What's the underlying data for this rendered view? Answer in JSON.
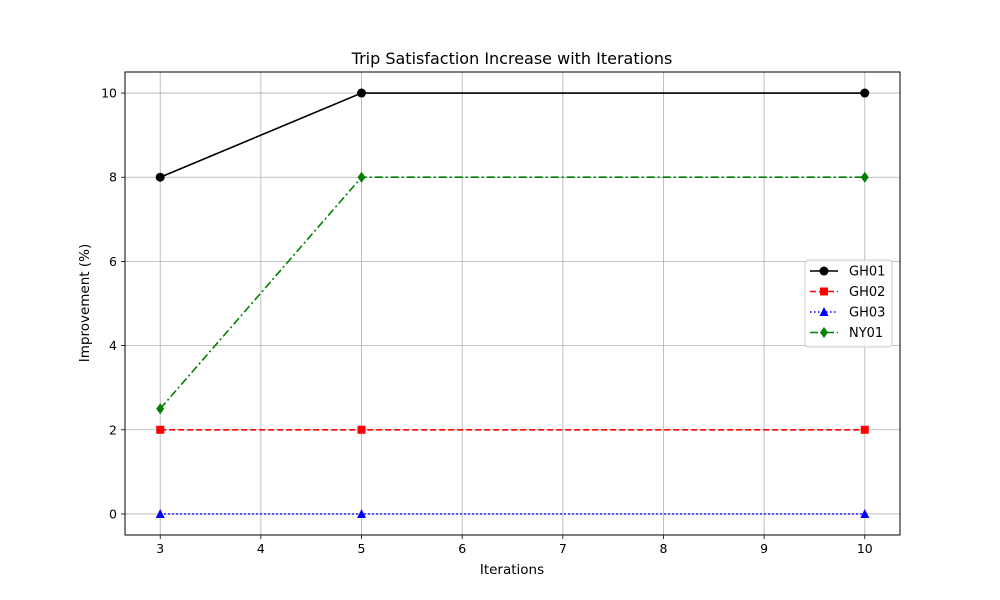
{
  "chart_data": {
    "type": "line",
    "title": "Trip Satisfaction Increase with Iterations",
    "xlabel": "Iterations",
    "ylabel": "Improvement (%)",
    "xlim": [
      2.65,
      10.35
    ],
    "ylim": [
      -0.5,
      10.5
    ],
    "xticks": [
      3,
      4,
      5,
      6,
      7,
      8,
      9,
      10
    ],
    "yticks": [
      0,
      2,
      4,
      6,
      8,
      10
    ],
    "grid": true,
    "legend_position": "center-right",
    "series": [
      {
        "name": "GH01",
        "x": [
          3,
          5,
          10
        ],
        "y": [
          8,
          10,
          10
        ],
        "color": "#000000",
        "linestyle": "solid",
        "marker": "circle"
      },
      {
        "name": "GH02",
        "x": [
          3,
          5,
          10
        ],
        "y": [
          2,
          2,
          2
        ],
        "color": "#ff0000",
        "linestyle": "dashed",
        "marker": "square"
      },
      {
        "name": "GH03",
        "x": [
          3,
          5,
          10
        ],
        "y": [
          0,
          0,
          0
        ],
        "color": "#0000ff",
        "linestyle": "dotted",
        "marker": "triangle"
      },
      {
        "name": "NY01",
        "x": [
          3,
          5,
          10
        ],
        "y": [
          2.5,
          8,
          8
        ],
        "color": "#008000",
        "linestyle": "dashdot",
        "marker": "diamond"
      }
    ]
  }
}
